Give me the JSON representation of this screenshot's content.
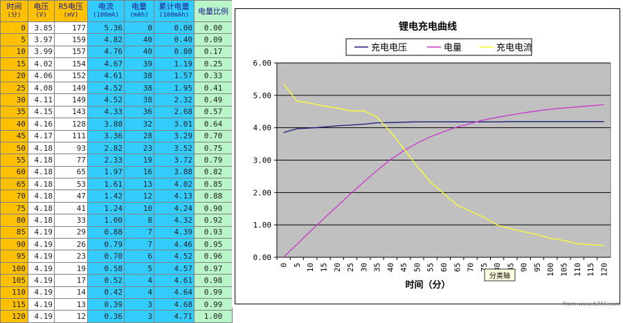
{
  "table": {
    "headers": [
      {
        "main": "时间",
        "sub": "(分)"
      },
      {
        "main": "电压",
        "sub": "(V)"
      },
      {
        "main": "R5电压",
        "sub": "(mV)"
      },
      {
        "main": "电流",
        "sub": "(100mA)"
      },
      {
        "main": "电量",
        "sub": "(mAh)"
      },
      {
        "main": "累计电量",
        "sub": "(100mAh)"
      },
      {
        "main": "电量比例",
        "sub": ""
      }
    ],
    "rows": [
      [
        "0",
        "3.85",
        "177",
        "5.36",
        "0",
        "0.00",
        "0.00"
      ],
      [
        "5",
        "3.97",
        "159",
        "4.82",
        "40",
        "0.40",
        "0.09"
      ],
      [
        "10",
        "3.99",
        "157",
        "4.76",
        "40",
        "0.80",
        "0.17"
      ],
      [
        "15",
        "4.02",
        "154",
        "4.67",
        "39",
        "1.19",
        "0.25"
      ],
      [
        "20",
        "4.06",
        "152",
        "4.61",
        "38",
        "1.57",
        "0.33"
      ],
      [
        "25",
        "4.08",
        "149",
        "4.52",
        "38",
        "1.95",
        "0.41"
      ],
      [
        "30",
        "4.11",
        "149",
        "4.52",
        "38",
        "2.32",
        "0.49"
      ],
      [
        "35",
        "4.15",
        "143",
        "4.33",
        "36",
        "2.68",
        "0.57"
      ],
      [
        "40",
        "4.16",
        "128",
        "3.88",
        "32",
        "3.01",
        "0.64"
      ],
      [
        "45",
        "4.17",
        "111",
        "3.36",
        "28",
        "3.29",
        "0.70"
      ],
      [
        "50",
        "4.18",
        "93",
        "2.82",
        "23",
        "3.52",
        "0.75"
      ],
      [
        "55",
        "4.18",
        "77",
        "2.33",
        "19",
        "3.72",
        "0.79"
      ],
      [
        "60",
        "4.18",
        "65",
        "1.97",
        "16",
        "3.88",
        "0.82"
      ],
      [
        "65",
        "4.18",
        "53",
        "1.61",
        "13",
        "4.02",
        "0.85"
      ],
      [
        "70",
        "4.18",
        "47",
        "1.42",
        "12",
        "4.13",
        "0.88"
      ],
      [
        "75",
        "4.18",
        "41",
        "1.24",
        "10",
        "4.24",
        "0.90"
      ],
      [
        "80",
        "4.18",
        "33",
        "1.00",
        "8",
        "4.32",
        "0.92"
      ],
      [
        "85",
        "4.19",
        "29",
        "0.88",
        "7",
        "4.39",
        "0.93"
      ],
      [
        "90",
        "4.19",
        "26",
        "0.79",
        "7",
        "4.46",
        "0.95"
      ],
      [
        "95",
        "4.19",
        "23",
        "0.70",
        "6",
        "4.52",
        "0.96"
      ],
      [
        "100",
        "4.19",
        "19",
        "0.58",
        "5",
        "4.57",
        "0.97"
      ],
      [
        "105",
        "4.19",
        "17",
        "0.52",
        "4",
        "4.61",
        "0.98"
      ],
      [
        "110",
        "4.19",
        "14",
        "0.42",
        "4",
        "4.64",
        "0.99"
      ],
      [
        "115",
        "4.19",
        "13",
        "0.39",
        "3",
        "4.68",
        "0.99"
      ],
      [
        "120",
        "4.19",
        "12",
        "0.36",
        "3",
        "4.71",
        "1.00"
      ]
    ]
  },
  "chart_data": {
    "type": "line",
    "title": "锂电充电曲线",
    "xlabel": "时间（分）",
    "ylabel": "",
    "ylim": [
      0,
      6
    ],
    "yticks": [
      "0.00",
      "1.00",
      "2.00",
      "3.00",
      "4.00",
      "5.00",
      "6.00"
    ],
    "categories": [
      "0",
      "5",
      "10",
      "15",
      "20",
      "25",
      "30",
      "35",
      "40",
      "45",
      "50",
      "55",
      "60",
      "65",
      "70",
      "75",
      "80",
      "85",
      "90",
      "95",
      "100",
      "105",
      "110",
      "115",
      "120"
    ],
    "series": [
      {
        "name": "充电电压",
        "color": "#1a1a7a",
        "values": [
          3.85,
          3.97,
          3.99,
          4.02,
          4.06,
          4.08,
          4.11,
          4.15,
          4.16,
          4.17,
          4.18,
          4.18,
          4.18,
          4.18,
          4.18,
          4.18,
          4.18,
          4.19,
          4.19,
          4.19,
          4.19,
          4.19,
          4.19,
          4.19,
          4.19
        ]
      },
      {
        "name": "电量",
        "color": "#cc33cc",
        "values": [
          0.0,
          0.4,
          0.8,
          1.19,
          1.57,
          1.95,
          2.32,
          2.68,
          3.01,
          3.29,
          3.52,
          3.72,
          3.88,
          4.02,
          4.13,
          4.24,
          4.32,
          4.39,
          4.46,
          4.52,
          4.57,
          4.61,
          4.64,
          4.68,
          4.71
        ]
      },
      {
        "name": "充电电流",
        "color": "#ffff33",
        "values": [
          5.36,
          4.82,
          4.76,
          4.67,
          4.61,
          4.52,
          4.52,
          4.33,
          3.88,
          3.36,
          2.82,
          2.33,
          1.97,
          1.61,
          1.42,
          1.24,
          1.0,
          0.88,
          0.79,
          0.7,
          0.58,
          0.52,
          0.42,
          0.39,
          0.36
        ]
      }
    ],
    "grid": true,
    "legend": "top",
    "plot_background": "#c0c0c0",
    "tooltip": "分类轴"
  },
  "footer": "From www.5iMX.com"
}
